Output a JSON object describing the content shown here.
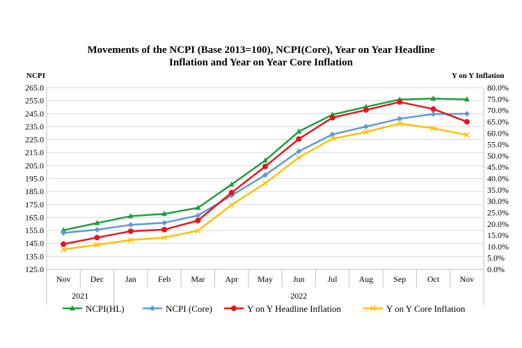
{
  "chart_data": {
    "type": "line",
    "title_line1": "Movements of the NCPI (Base 2013=100), NCPI(Core), Year on Year Headline",
    "title_line2": "Inflation and Year on Year Core Inflation",
    "ylabel_left": "NCPI",
    "ylabel_right": "Y on Y Inflation",
    "categories": [
      "Nov",
      "Dec",
      "Jan",
      "Feb",
      "Mar",
      "Apr",
      "May",
      "Jun",
      "Jul",
      "Aug",
      "Sep",
      "Oct",
      "Nov"
    ],
    "year_groups": [
      {
        "label": "2021",
        "start": 0,
        "end": 1
      },
      {
        "label": "2022",
        "start": 2,
        "end": 12
      }
    ],
    "y_left": {
      "min": 125,
      "max": 265,
      "step": 10,
      "ticks": [
        "125.0",
        "135.0",
        "145.0",
        "155.0",
        "165.0",
        "175.0",
        "185.0",
        "195.0",
        "205.0",
        "215.0",
        "225.0",
        "235.0",
        "245.0",
        "255.0",
        "265.0"
      ]
    },
    "y_right": {
      "min": 0,
      "max": 80,
      "step": 5,
      "ticks": [
        "0.0%",
        "5.0%",
        "10.0%",
        "15.0%",
        "20.0%",
        "25.0%",
        "30.0%",
        "35.0%",
        "40.0%",
        "45.0%",
        "50.0%",
        "55.0%",
        "60.0%",
        "65.0%",
        "70.0%",
        "75.0%",
        "80.0%"
      ]
    },
    "series": [
      {
        "name": "NCPI(HL)",
        "axis": "left",
        "color": "#1a9f3a",
        "marker": "triangle",
        "values": [
          155.2,
          160.7,
          166.0,
          167.8,
          172.4,
          190.4,
          208.9,
          231.2,
          244.2,
          250.2,
          255.9,
          256.6,
          256.0
        ]
      },
      {
        "name": "NCPI (Core)",
        "axis": "left",
        "color": "#5b9bd5",
        "marker": "diamond",
        "values": [
          153.1,
          155.6,
          159.3,
          160.9,
          166.5,
          181.9,
          197.7,
          216.0,
          229.0,
          235.0,
          241.1,
          244.7,
          244.9
        ]
      },
      {
        "name": "Y on Y Headline Inflation",
        "axis": "right",
        "color": "#e8141b",
        "marker": "circle",
        "values": [
          11.1,
          14.0,
          16.8,
          17.5,
          21.5,
          33.8,
          45.3,
          57.4,
          66.8,
          70.2,
          73.7,
          70.6,
          65.0
        ]
      },
      {
        "name": "Y on Y Core Inflation",
        "axis": "right",
        "color": "#ffc000",
        "marker": "x",
        "values": [
          8.8,
          10.8,
          12.9,
          14.0,
          17.0,
          28.4,
          37.9,
          49.3,
          57.5,
          60.5,
          64.2,
          62.1,
          59.2
        ]
      }
    ]
  }
}
